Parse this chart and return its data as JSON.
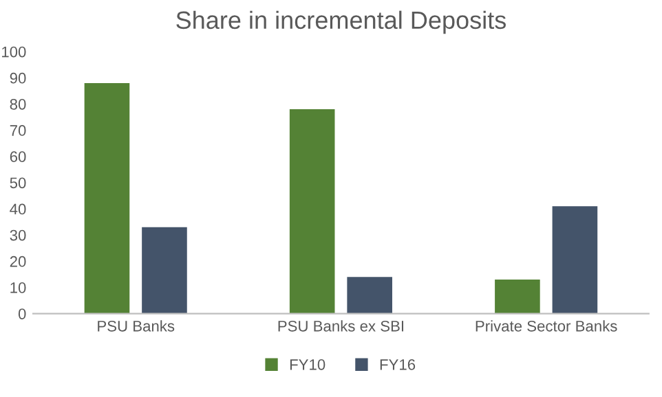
{
  "chart_data": {
    "type": "bar",
    "title": "Share in incremental Deposits",
    "categories": [
      "PSU Banks",
      "PSU Banks ex SBI",
      "Private Sector Banks"
    ],
    "series": [
      {
        "name": "FY10",
        "color": "#548235",
        "values": [
          88,
          78,
          13
        ]
      },
      {
        "name": "FY16",
        "color": "#44546a",
        "values": [
          33,
          14,
          41
        ]
      }
    ],
    "ylim": [
      0,
      100
    ],
    "yticks": [
      0,
      10,
      20,
      30,
      40,
      50,
      60,
      70,
      80,
      90,
      100
    ],
    "grid": false,
    "legend": "bottom"
  }
}
